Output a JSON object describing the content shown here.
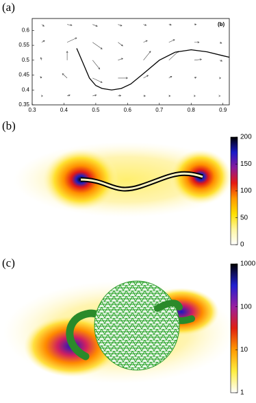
{
  "chart_data": [
    {
      "type": "quiver",
      "label": "(a)",
      "annotation": "(b)",
      "xlim": [
        0.3,
        0.92
      ],
      "ylim": [
        0.35,
        0.64
      ],
      "xticks": [
        0.3,
        0.4,
        0.5,
        0.6,
        0.7,
        0.8,
        0.9
      ],
      "yticks": [
        0.35,
        0.4,
        0.45,
        0.5,
        0.55,
        0.6
      ],
      "arrows": {
        "x": [
          0.33,
          0.41,
          0.49,
          0.57,
          0.65,
          0.73,
          0.81,
          0.89,
          0.33,
          0.41,
          0.49,
          0.57,
          0.65,
          0.73,
          0.81,
          0.89,
          0.33,
          0.41,
          0.49,
          0.57,
          0.65,
          0.73,
          0.81,
          0.89,
          0.33,
          0.41,
          0.49,
          0.57,
          0.65,
          0.73,
          0.81,
          0.89,
          0.33,
          0.41,
          0.49,
          0.57,
          0.65,
          0.73,
          0.81,
          0.89
        ],
        "y": [
          0.62,
          0.62,
          0.62,
          0.62,
          0.62,
          0.62,
          0.62,
          0.62,
          0.56,
          0.56,
          0.56,
          0.56,
          0.56,
          0.56,
          0.56,
          0.56,
          0.5,
          0.5,
          0.5,
          0.5,
          0.5,
          0.5,
          0.5,
          0.5,
          0.44,
          0.44,
          0.44,
          0.44,
          0.44,
          0.44,
          0.44,
          0.44,
          0.38,
          0.38,
          0.38,
          0.38,
          0.38,
          0.38,
          0.38,
          0.38
        ],
        "u": [
          0.005,
          0.01,
          0.01,
          0.008,
          0.006,
          0.005,
          0.004,
          0.003,
          0.006,
          0.02,
          0.02,
          0.01,
          0.008,
          0.012,
          0.01,
          0.004,
          -0.002,
          0.0,
          0.015,
          0.01,
          0.015,
          0.02,
          0.015,
          0.005,
          -0.003,
          -0.01,
          0.02,
          0.02,
          0.01,
          0.006,
          0.004,
          0.002,
          0.002,
          0.006,
          0.008,
          0.006,
          0.004,
          0.003,
          0.002,
          0.001
        ],
        "v": [
          -0.004,
          -0.002,
          -0.004,
          -0.003,
          -0.002,
          -0.001,
          0,
          0,
          0.004,
          0.01,
          -0.015,
          -0.008,
          0.004,
          0.006,
          0,
          -0.002,
          0.006,
          0.02,
          -0.02,
          0.004,
          0.02,
          0.02,
          0.002,
          -0.002,
          0.003,
          0.01,
          -0.01,
          0.0,
          0.006,
          0.004,
          0.002,
          0,
          0,
          0.002,
          0.002,
          0.001,
          0,
          0,
          0,
          0
        ]
      },
      "curve": {
        "x": [
          0.44,
          0.46,
          0.48,
          0.5,
          0.52,
          0.55,
          0.58,
          0.61,
          0.65,
          0.7,
          0.75,
          0.8,
          0.85,
          0.9,
          0.92
        ],
        "y": [
          0.54,
          0.49,
          0.44,
          0.415,
          0.405,
          0.4,
          0.405,
          0.42,
          0.455,
          0.5,
          0.527,
          0.535,
          0.528,
          0.515,
          0.51
        ]
      }
    },
    {
      "type": "heatmap",
      "label": "(b)",
      "zlim": [
        0,
        200
      ],
      "zticks": [
        0,
        50,
        100,
        150,
        200
      ],
      "colormap": [
        "#ffffff",
        "#fff6a0",
        "#ffe000",
        "#ff9a00",
        "#e61a10",
        "#8a1a9a",
        "#1a1ac8",
        "#000000"
      ]
    },
    {
      "type": "heatmap",
      "label": "(c)",
      "log": true,
      "zlim": [
        1,
        1000
      ],
      "zticks": [
        1,
        10,
        100,
        1000
      ],
      "colormap": [
        "#ffffff",
        "#ffee40",
        "#ff9a00",
        "#e02010",
        "#9a20a0",
        "#2020d0",
        "#000000"
      ]
    }
  ]
}
